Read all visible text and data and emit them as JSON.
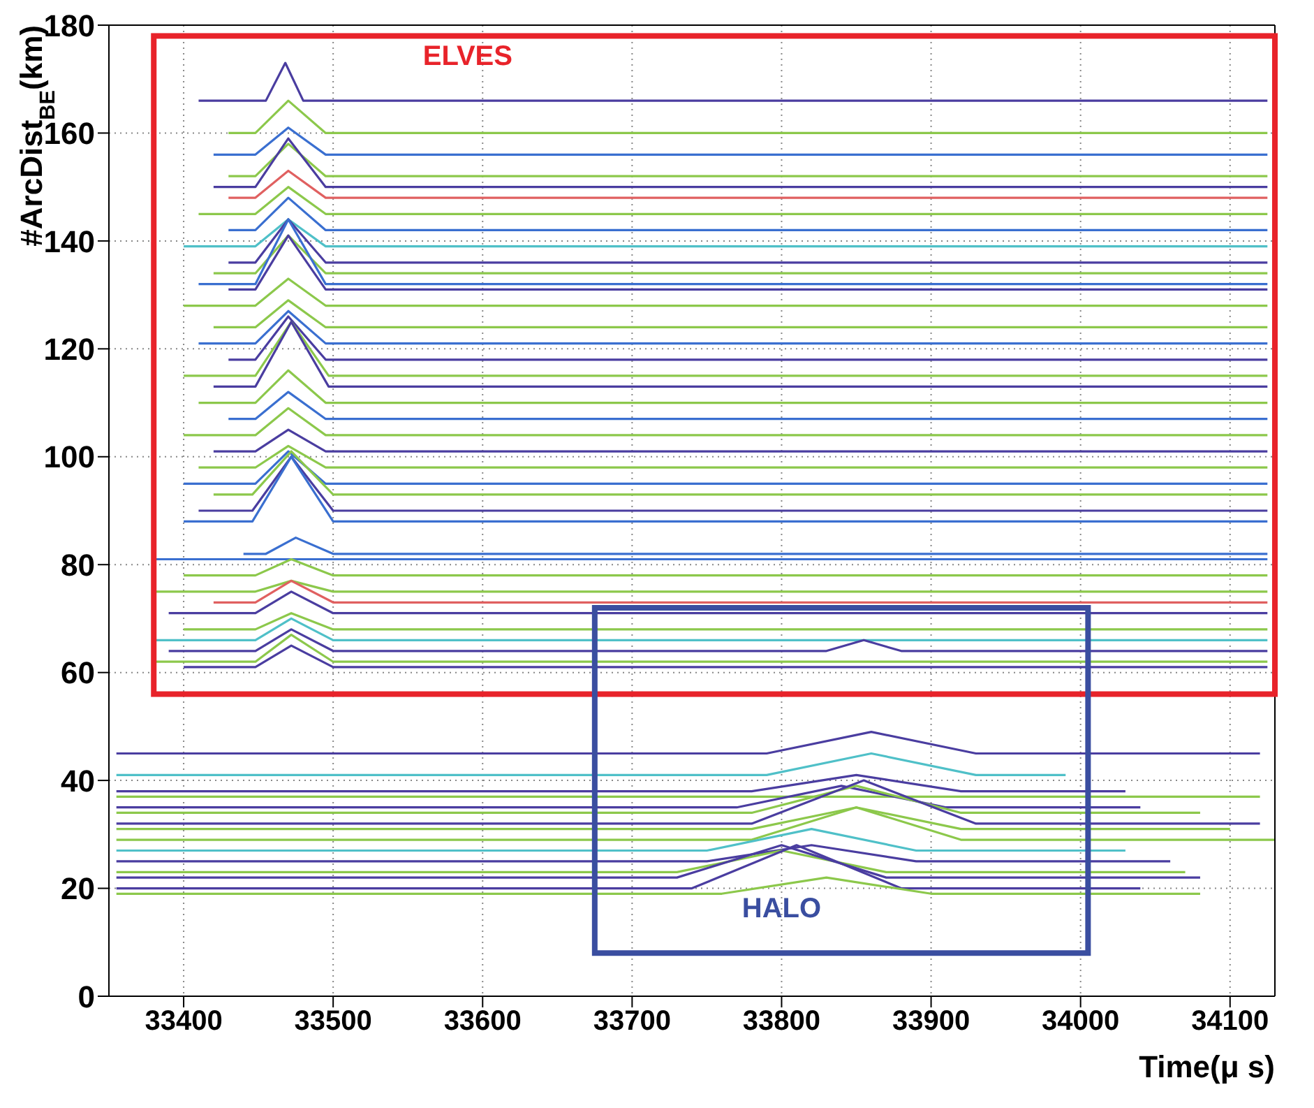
{
  "chart_data": {
    "type": "line",
    "xlabel": "Time(μ s)",
    "ylabel": "#ArcDist$_{BE}$(km)",
    "xlim": [
      33350,
      34130
    ],
    "xticks": [
      33400,
      33500,
      33600,
      33700,
      33800,
      33900,
      34000,
      34100
    ],
    "ylim": [
      0,
      180
    ],
    "yticks": [
      0,
      20,
      40,
      60,
      80,
      100,
      120,
      140,
      160,
      180
    ],
    "grid": true,
    "marker": "none",
    "line_style": "solid",
    "annotations": [
      "ELVES",
      "HALO"
    ],
    "series": [
      {
        "color": "#4a3da0",
        "x": [
          33410,
          33455,
          33468,
          33480,
          34125
        ],
        "values": [
          166,
          166,
          173,
          166,
          166
        ]
      },
      {
        "color": "#8cc84b",
        "x": [
          33430,
          33448,
          33470,
          33495,
          34125
        ],
        "values": [
          160,
          160,
          166,
          160,
          160
        ]
      },
      {
        "color": "#3a6fd0",
        "x": [
          33420,
          33448,
          33470,
          33495,
          34125
        ],
        "values": [
          156,
          156,
          161,
          156,
          156
        ]
      },
      {
        "color": "#8cc84b",
        "x": [
          33430,
          33448,
          33470,
          33495,
          34125
        ],
        "values": [
          152,
          152,
          158,
          152,
          152
        ]
      },
      {
        "color": "#4a3da0",
        "x": [
          33420,
          33448,
          33470,
          33495,
          34125
        ],
        "values": [
          150,
          150,
          159,
          150,
          150
        ]
      },
      {
        "color": "#e06060",
        "x": [
          33430,
          33448,
          33470,
          33495,
          34125
        ],
        "values": [
          148,
          148,
          153,
          148,
          148
        ]
      },
      {
        "color": "#8cc84b",
        "x": [
          33410,
          33448,
          33470,
          33495,
          34125
        ],
        "values": [
          145,
          145,
          150,
          145,
          145
        ]
      },
      {
        "color": "#3a6fd0",
        "x": [
          33430,
          33448,
          33470,
          33495,
          34125
        ],
        "values": [
          142,
          142,
          148,
          142,
          142
        ]
      },
      {
        "color": "#4fc0c8",
        "x": [
          33400,
          33448,
          33470,
          33495,
          34125
        ],
        "values": [
          139,
          139,
          144,
          139,
          139
        ]
      },
      {
        "color": "#4a3da0",
        "x": [
          33430,
          33448,
          33470,
          33495,
          34125
        ],
        "values": [
          136,
          136,
          144,
          136,
          136
        ]
      },
      {
        "color": "#8cc84b",
        "x": [
          33420,
          33448,
          33470,
          33495,
          34125
        ],
        "values": [
          134,
          134,
          141,
          134,
          134
        ]
      },
      {
        "color": "#3a6fd0",
        "x": [
          33410,
          33448,
          33470,
          33495,
          34125
        ],
        "values": [
          132,
          132,
          144,
          132,
          132
        ]
      },
      {
        "color": "#4a3da0",
        "x": [
          33430,
          33448,
          33470,
          33495,
          34125
        ],
        "values": [
          131,
          131,
          141,
          131,
          131
        ]
      },
      {
        "color": "#8cc84b",
        "x": [
          33400,
          33448,
          33470,
          33495,
          34125
        ],
        "values": [
          128,
          128,
          133,
          128,
          128
        ]
      },
      {
        "color": "#8cc84b",
        "x": [
          33420,
          33448,
          33470,
          33495,
          34125
        ],
        "values": [
          124,
          124,
          129,
          124,
          124
        ]
      },
      {
        "color": "#3a6fd0",
        "x": [
          33410,
          33448,
          33470,
          33495,
          34125
        ],
        "values": [
          121,
          121,
          127,
          121,
          121
        ]
      },
      {
        "color": "#4a3da0",
        "x": [
          33430,
          33448,
          33470,
          33495,
          34125
        ],
        "values": [
          118,
          118,
          126,
          118,
          118
        ]
      },
      {
        "color": "#8cc84b",
        "x": [
          33400,
          33448,
          33472,
          33497,
          34125
        ],
        "values": [
          115,
          115,
          125,
          115,
          115
        ]
      },
      {
        "color": "#4a3da0",
        "x": [
          33420,
          33448,
          33472,
          33497,
          34125
        ],
        "values": [
          113,
          113,
          125,
          113,
          113
        ]
      },
      {
        "color": "#8cc84b",
        "x": [
          33410,
          33448,
          33470,
          33495,
          34125
        ],
        "values": [
          110,
          110,
          116,
          110,
          110
        ]
      },
      {
        "color": "#3a6fd0",
        "x": [
          33430,
          33448,
          33470,
          33495,
          34125
        ],
        "values": [
          107,
          107,
          112,
          107,
          107
        ]
      },
      {
        "color": "#8cc84b",
        "x": [
          33400,
          33448,
          33470,
          33495,
          34125
        ],
        "values": [
          104,
          104,
          109,
          104,
          104
        ]
      },
      {
        "color": "#4a3da0",
        "x": [
          33420,
          33448,
          33470,
          33495,
          34125
        ],
        "values": [
          101,
          101,
          105,
          101,
          101
        ]
      },
      {
        "color": "#8cc84b",
        "x": [
          33410,
          33448,
          33470,
          33495,
          34125
        ],
        "values": [
          98,
          98,
          102,
          98,
          98
        ]
      },
      {
        "color": "#3a6fd0",
        "x": [
          33400,
          33448,
          33470,
          33495,
          34125
        ],
        "values": [
          95,
          95,
          101,
          95,
          95
        ]
      },
      {
        "color": "#8cc84b",
        "x": [
          33420,
          33446,
          33472,
          33500,
          34125
        ],
        "values": [
          93,
          93,
          101,
          93,
          93
        ]
      },
      {
        "color": "#4a3da0",
        "x": [
          33410,
          33446,
          33472,
          33500,
          34125
        ],
        "values": [
          90,
          90,
          100,
          90,
          90
        ]
      },
      {
        "color": "#3a6fd0",
        "x": [
          33400,
          33446,
          33472,
          33500,
          34125
        ],
        "values": [
          88,
          88,
          100,
          88,
          88
        ]
      },
      {
        "color": "#3a6fd0",
        "x": [
          33440,
          33455,
          33475,
          33500,
          34125
        ],
        "values": [
          82,
          82,
          85,
          82,
          82
        ]
      },
      {
        "color": "#3a6fd0",
        "x": [
          33380,
          34125
        ],
        "values": [
          81,
          81
        ]
      },
      {
        "color": "#8cc84b",
        "x": [
          33400,
          33448,
          33472,
          33500,
          34125
        ],
        "values": [
          78,
          78,
          81,
          78,
          78
        ]
      },
      {
        "color": "#8cc84b",
        "x": [
          33380,
          33448,
          33472,
          33500,
          34125
        ],
        "values": [
          75,
          75,
          77,
          75,
          75
        ]
      },
      {
        "color": "#e06060",
        "x": [
          33420,
          33448,
          33472,
          33500,
          34125
        ],
        "values": [
          73,
          73,
          77,
          73,
          73
        ]
      },
      {
        "color": "#4a3da0",
        "x": [
          33390,
          33448,
          33472,
          33500,
          34125
        ],
        "values": [
          71,
          71,
          75,
          71,
          71
        ]
      },
      {
        "color": "#8cc84b",
        "x": [
          33400,
          33448,
          33472,
          33500,
          34125
        ],
        "values": [
          68,
          68,
          71,
          68,
          68
        ]
      },
      {
        "color": "#4fc0c8",
        "x": [
          33380,
          33448,
          33472,
          33500,
          34125
        ],
        "values": [
          66,
          66,
          70,
          66,
          66
        ]
      },
      {
        "color": "#4a3da0",
        "x": [
          33390,
          33448,
          33472,
          33500,
          33830,
          33855,
          33880,
          34125
        ],
        "values": [
          64,
          64,
          68,
          64,
          64,
          66,
          64,
          64
        ]
      },
      {
        "color": "#8cc84b",
        "x": [
          33380,
          33448,
          33472,
          33500,
          34125
        ],
        "values": [
          62,
          62,
          67,
          62,
          62
        ]
      },
      {
        "color": "#4a3da0",
        "x": [
          33400,
          33448,
          33472,
          33500,
          34125
        ],
        "values": [
          61,
          61,
          65,
          61,
          61
        ]
      },
      {
        "color": "#4a3da0",
        "x": [
          33355,
          33790,
          33860,
          33930,
          34120
        ],
        "values": [
          45,
          45,
          49,
          45,
          45
        ]
      },
      {
        "color": "#4fc0c8",
        "x": [
          33355,
          33790,
          33860,
          33930,
          33990
        ],
        "values": [
          41,
          41,
          45,
          41,
          41
        ]
      },
      {
        "color": "#4a3da0",
        "x": [
          33355,
          33780,
          33850,
          33920,
          34030
        ],
        "values": [
          38,
          38,
          41,
          38,
          38
        ]
      },
      {
        "color": "#8cc84b",
        "x": [
          33355,
          34120
        ],
        "values": [
          37,
          37
        ]
      },
      {
        "color": "#4a3da0",
        "x": [
          33355,
          33770,
          33840,
          33910,
          34040
        ],
        "values": [
          35,
          35,
          39,
          35,
          35
        ]
      },
      {
        "color": "#8cc84b",
        "x": [
          33355,
          33780,
          33850,
          33920,
          34080
        ],
        "values": [
          34,
          34,
          39,
          34,
          34
        ]
      },
      {
        "color": "#4a3da0",
        "x": [
          33355,
          33780,
          33855,
          33930,
          34120
        ],
        "values": [
          32,
          32,
          40,
          32,
          32
        ]
      },
      {
        "color": "#8cc84b",
        "x": [
          33355,
          33780,
          33850,
          33920,
          34100
        ],
        "values": [
          31,
          31,
          35,
          31,
          31
        ]
      },
      {
        "color": "#8cc84b",
        "x": [
          33355,
          33780,
          33850,
          33920,
          34130
        ],
        "values": [
          29,
          29,
          35,
          29,
          29
        ]
      },
      {
        "color": "#4fc0c8",
        "x": [
          33355,
          33750,
          33820,
          33890,
          34030
        ],
        "values": [
          27,
          27,
          31,
          27,
          27
        ]
      },
      {
        "color": "#4a3da0",
        "x": [
          33355,
          33750,
          33820,
          33890,
          34060
        ],
        "values": [
          25,
          25,
          28,
          25,
          25
        ]
      },
      {
        "color": "#8cc84b",
        "x": [
          33355,
          33730,
          33800,
          33870,
          34070
        ],
        "values": [
          23,
          23,
          27,
          23,
          23
        ]
      },
      {
        "color": "#4a3da0",
        "x": [
          33355,
          33730,
          33800,
          33870,
          34080
        ],
        "values": [
          22,
          22,
          28,
          22,
          22
        ]
      },
      {
        "color": "#4a3da0",
        "x": [
          33355,
          33740,
          33810,
          33880,
          34040
        ],
        "values": [
          20,
          20,
          28,
          20,
          20
        ]
      },
      {
        "color": "#8cc84b",
        "x": [
          33355,
          33760,
          33830,
          33900,
          34080
        ],
        "values": [
          19,
          19,
          22,
          19,
          19
        ]
      }
    ]
  }
}
